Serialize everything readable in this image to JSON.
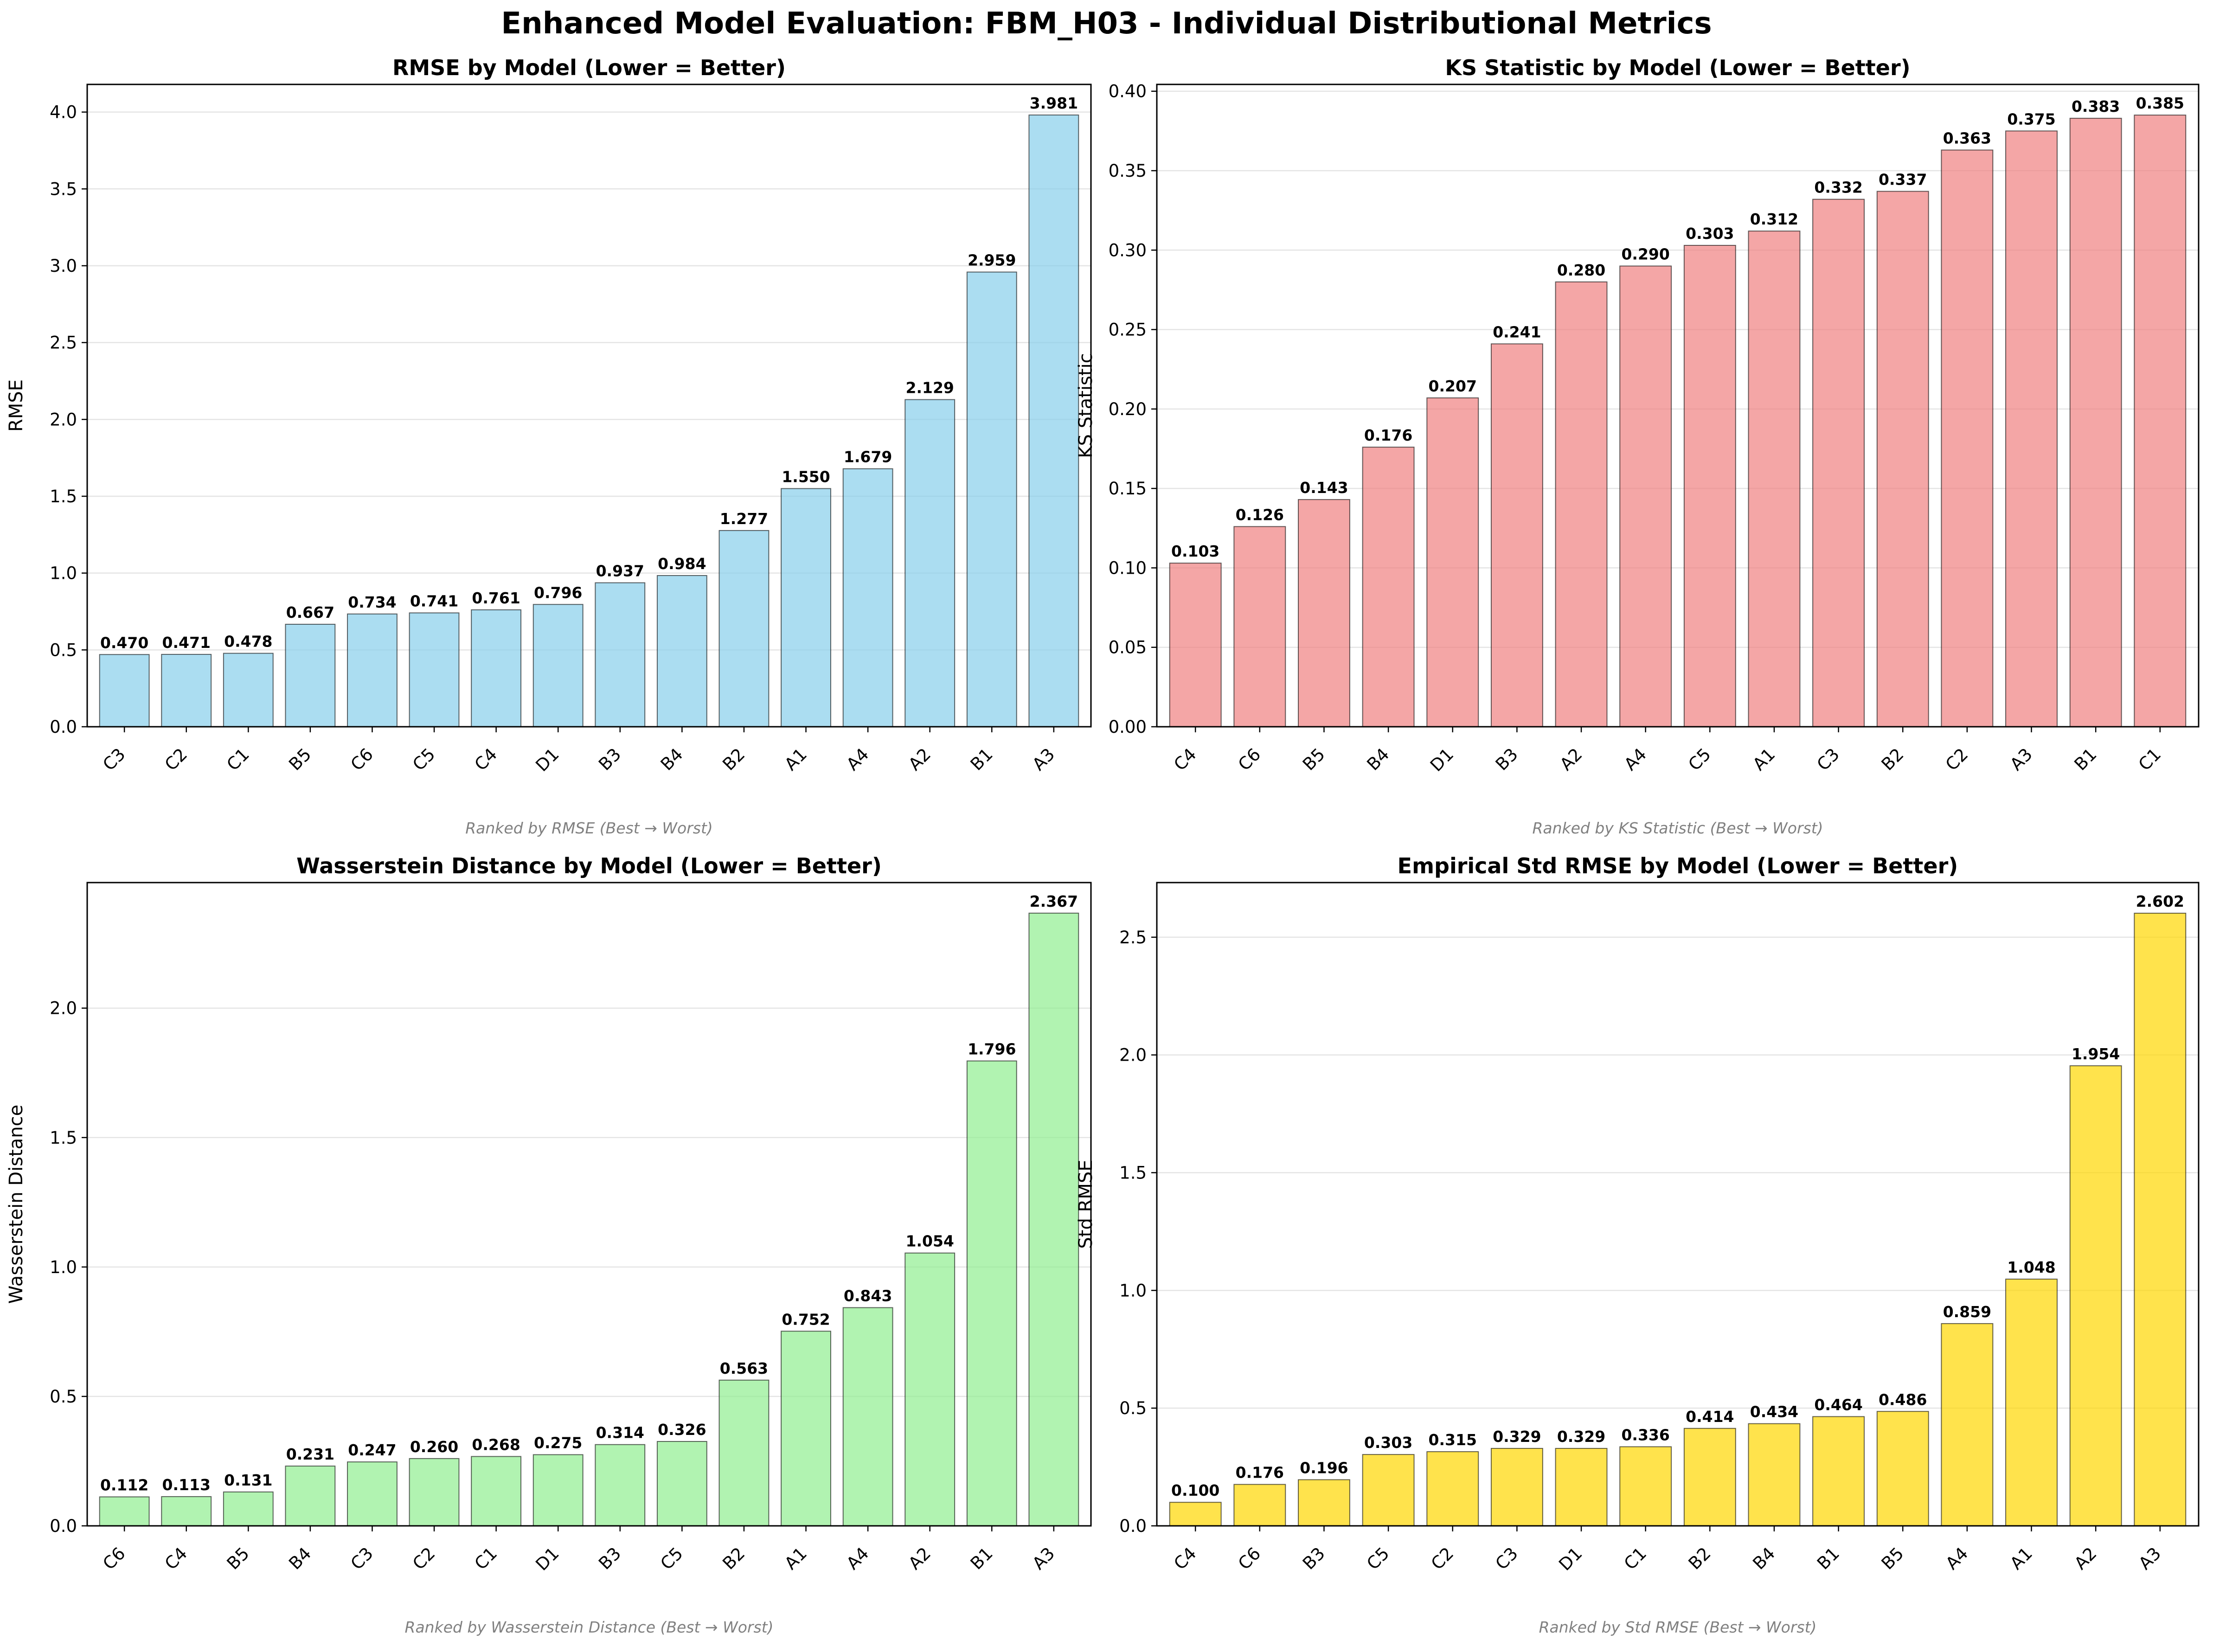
{
  "figure": {
    "title": "Enhanced Model Evaluation: FBM_H03 - Individual Distributional Metrics"
  },
  "chart_data": [
    {
      "type": "bar",
      "title": "RMSE by Model (Lower = Better)",
      "xlabel": "",
      "ylabel": "RMSE",
      "note": "Ranked by RMSE (Best → Worst)",
      "color": "#87ceeb",
      "ylim": [
        0,
        4.18
      ],
      "yticks": [
        0.0,
        0.5,
        1.0,
        1.5,
        2.0,
        2.5,
        3.0,
        3.5,
        4.0
      ],
      "tick_decimals": 1,
      "grid": "horizontal",
      "categories": [
        "C3",
        "C2",
        "C1",
        "B5",
        "C6",
        "C5",
        "C4",
        "D1",
        "B3",
        "B4",
        "B2",
        "A1",
        "A4",
        "A2",
        "B1",
        "A3"
      ],
      "values": [
        0.47,
        0.471,
        0.478,
        0.667,
        0.734,
        0.741,
        0.761,
        0.796,
        0.937,
        0.984,
        1.277,
        1.55,
        1.679,
        2.129,
        2.959,
        3.981
      ],
      "value_labels": [
        "0.470",
        "0.471",
        "0.478",
        "0.667",
        "0.734",
        "0.741",
        "0.761",
        "0.796",
        "0.937",
        "0.984",
        "1.277",
        "1.550",
        "1.679",
        "2.129",
        "2.959",
        "3.981"
      ]
    },
    {
      "type": "bar",
      "title": "KS Statistic by Model (Lower = Better)",
      "xlabel": "",
      "ylabel": "KS Statistic",
      "note": "Ranked by KS Statistic (Best → Worst)",
      "color": "#f08080",
      "ylim": [
        0,
        0.4043
      ],
      "yticks": [
        0.0,
        0.05,
        0.1,
        0.15,
        0.2,
        0.25,
        0.3,
        0.35,
        0.4
      ],
      "tick_decimals": 2,
      "grid": "horizontal",
      "categories": [
        "C4",
        "C6",
        "B5",
        "B4",
        "D1",
        "B3",
        "A2",
        "A4",
        "C5",
        "A1",
        "C3",
        "B2",
        "C2",
        "A3",
        "B1",
        "C1"
      ],
      "values": [
        0.103,
        0.126,
        0.143,
        0.176,
        0.207,
        0.241,
        0.28,
        0.29,
        0.303,
        0.312,
        0.332,
        0.337,
        0.363,
        0.375,
        0.383,
        0.385
      ],
      "value_labels": [
        "0.103",
        "0.126",
        "0.143",
        "0.176",
        "0.207",
        "0.241",
        "0.280",
        "0.290",
        "0.303",
        "0.312",
        "0.332",
        "0.337",
        "0.363",
        "0.375",
        "0.383",
        "0.385"
      ]
    },
    {
      "type": "bar",
      "title": "Wasserstein Distance by Model (Lower = Better)",
      "xlabel": "",
      "ylabel": "Wasserstein Distance",
      "note": "Ranked by Wasserstein Distance (Best → Worst)",
      "color": "#90ee90",
      "ylim": [
        0,
        2.485
      ],
      "yticks": [
        0.0,
        0.5,
        1.0,
        1.5,
        2.0
      ],
      "tick_decimals": 1,
      "grid": "horizontal",
      "categories": [
        "C6",
        "C4",
        "B5",
        "B4",
        "C3",
        "C2",
        "C1",
        "D1",
        "B3",
        "C5",
        "B2",
        "A1",
        "A4",
        "A2",
        "B1",
        "A3"
      ],
      "values": [
        0.112,
        0.113,
        0.131,
        0.231,
        0.247,
        0.26,
        0.268,
        0.275,
        0.314,
        0.326,
        0.563,
        0.752,
        0.843,
        1.054,
        1.796,
        2.367
      ],
      "value_labels": [
        "0.112",
        "0.113",
        "0.131",
        "0.231",
        "0.247",
        "0.260",
        "0.268",
        "0.275",
        "0.314",
        "0.326",
        "0.563",
        "0.752",
        "0.843",
        "1.054",
        "1.796",
        "2.367"
      ]
    },
    {
      "type": "bar",
      "title": "Empirical Std RMSE by Model (Lower = Better)",
      "xlabel": "",
      "ylabel": "Std RMSE",
      "note": "Ranked by Std RMSE (Best → Worst)",
      "color": "#ffd700",
      "ylim": [
        0,
        2.732
      ],
      "yticks": [
        0.0,
        0.5,
        1.0,
        1.5,
        2.0,
        2.5
      ],
      "tick_decimals": 1,
      "grid": "horizontal",
      "categories": [
        "C4",
        "C6",
        "B3",
        "C5",
        "C2",
        "C3",
        "D1",
        "C1",
        "B2",
        "B4",
        "B1",
        "B5",
        "A4",
        "A1",
        "A2",
        "A3"
      ],
      "values": [
        0.1,
        0.176,
        0.196,
        0.303,
        0.315,
        0.329,
        0.329,
        0.336,
        0.414,
        0.434,
        0.464,
        0.486,
        0.859,
        1.048,
        1.954,
        2.602
      ],
      "value_labels": [
        "0.100",
        "0.176",
        "0.196",
        "0.303",
        "0.315",
        "0.329",
        "0.329",
        "0.336",
        "0.414",
        "0.434",
        "0.464",
        "0.486",
        "0.859",
        "1.048",
        "1.954",
        "2.602"
      ]
    }
  ]
}
